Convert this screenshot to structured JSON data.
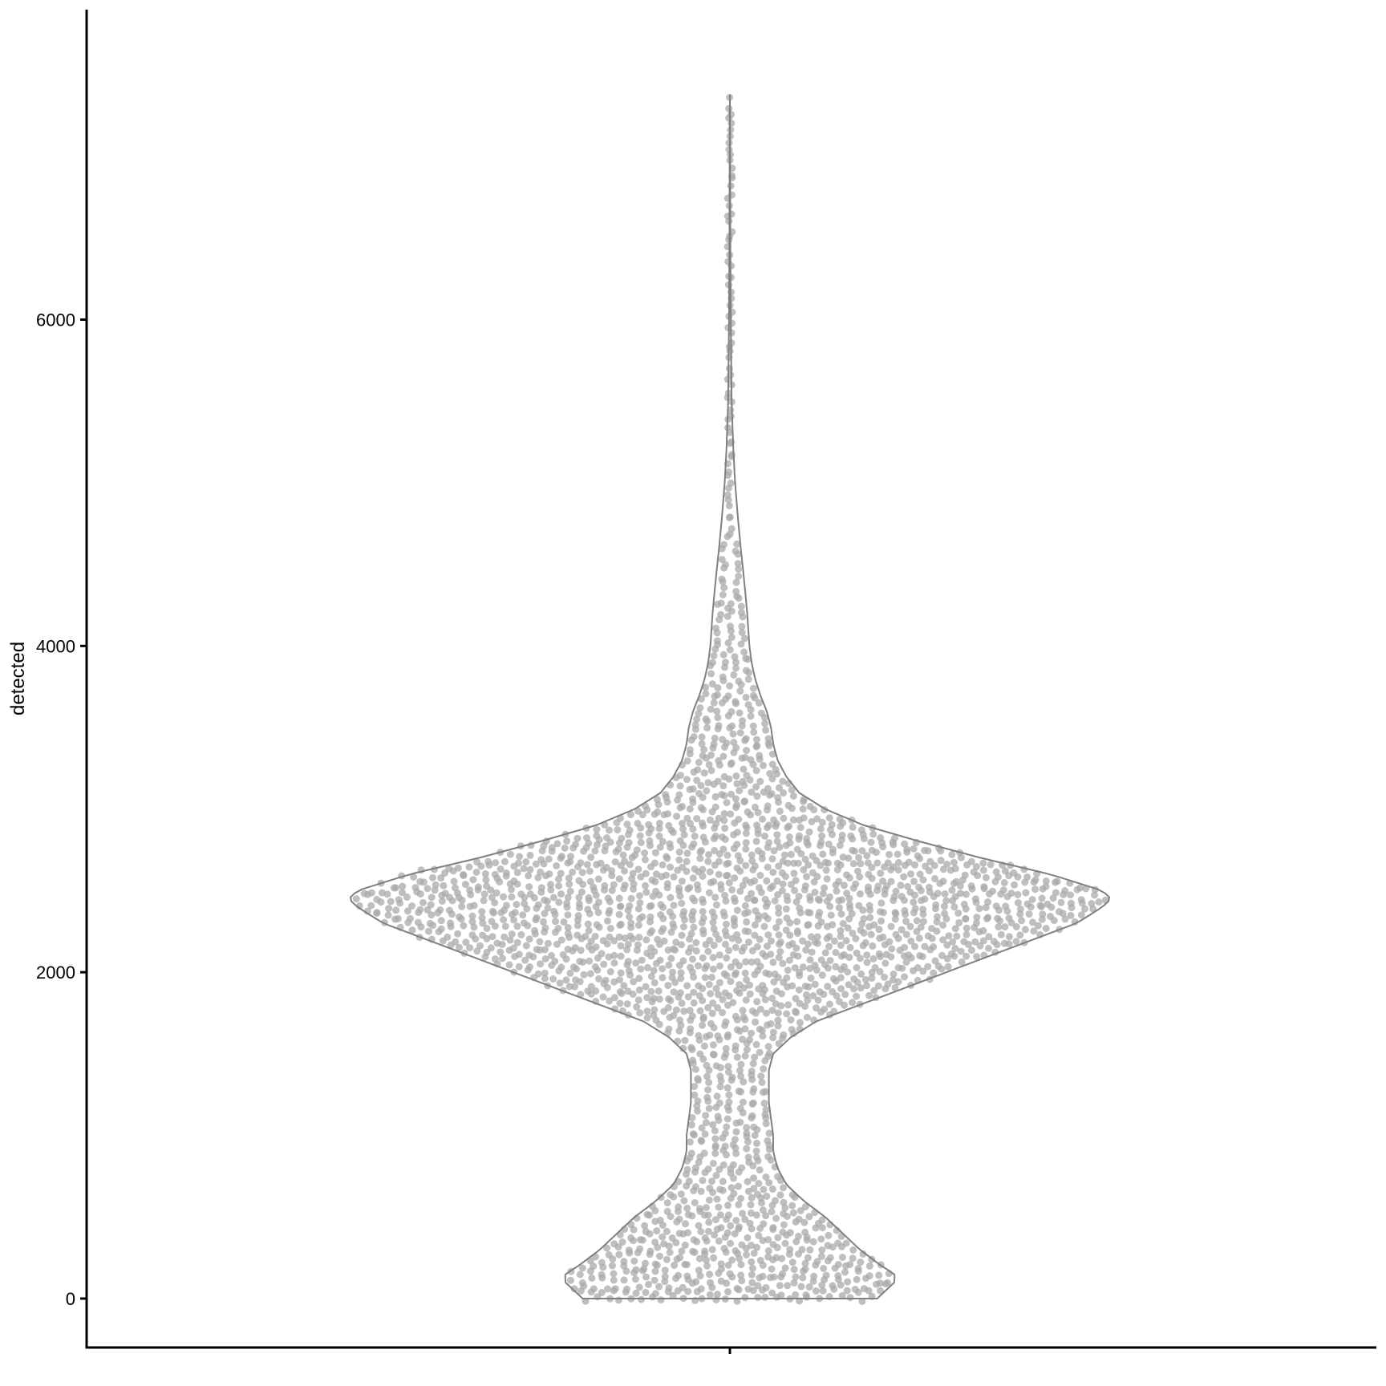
{
  "chart_data": {
    "type": "violin",
    "title": "",
    "xlabel": "",
    "ylabel": "detected",
    "ylim": [
      -300,
      7900
    ],
    "y_ticks": [
      0,
      2000,
      4000,
      6000
    ],
    "y_tick_labels": [
      "0",
      "2000",
      "4000",
      "6000"
    ],
    "categories": [
      ""
    ],
    "grid": false,
    "legend": "none",
    "colors": {
      "violin_outline": "#808080",
      "points": "#a9a9a9",
      "axis": "#000000"
    },
    "violin_half_width_profile": [
      [
        0,
        0.34
      ],
      [
        50,
        0.36
      ],
      [
        100,
        0.38
      ],
      [
        150,
        0.38
      ],
      [
        200,
        0.35
      ],
      [
        300,
        0.3
      ],
      [
        400,
        0.26
      ],
      [
        500,
        0.22
      ],
      [
        600,
        0.17
      ],
      [
        700,
        0.13
      ],
      [
        800,
        0.11
      ],
      [
        900,
        0.1
      ],
      [
        1000,
        0.1
      ],
      [
        1100,
        0.095
      ],
      [
        1200,
        0.09
      ],
      [
        1300,
        0.09
      ],
      [
        1400,
        0.09
      ],
      [
        1500,
        0.1
      ],
      [
        1600,
        0.14
      ],
      [
        1700,
        0.2
      ],
      [
        1800,
        0.3
      ],
      [
        1900,
        0.4
      ],
      [
        2000,
        0.5
      ],
      [
        2100,
        0.6
      ],
      [
        2200,
        0.7
      ],
      [
        2300,
        0.8
      ],
      [
        2400,
        0.86
      ],
      [
        2450,
        0.88
      ],
      [
        2500,
        0.86
      ],
      [
        2600,
        0.74
      ],
      [
        2700,
        0.58
      ],
      [
        2800,
        0.44
      ],
      [
        2900,
        0.31
      ],
      [
        3000,
        0.22
      ],
      [
        3100,
        0.16
      ],
      [
        3200,
        0.13
      ],
      [
        3300,
        0.11
      ],
      [
        3400,
        0.1
      ],
      [
        3500,
        0.095
      ],
      [
        3600,
        0.085
      ],
      [
        3700,
        0.07
      ],
      [
        3800,
        0.058
      ],
      [
        3900,
        0.05
      ],
      [
        4000,
        0.045
      ],
      [
        4200,
        0.04
      ],
      [
        4400,
        0.033
      ],
      [
        4600,
        0.025
      ],
      [
        4800,
        0.018
      ],
      [
        5000,
        0.012
      ],
      [
        5200,
        0.008
      ],
      [
        5500,
        0.004
      ],
      [
        6000,
        0.002
      ],
      [
        6500,
        0.001
      ],
      [
        7000,
        0.0005
      ],
      [
        7380,
        0
      ]
    ],
    "y_min": 0,
    "y_max": 7380
  }
}
